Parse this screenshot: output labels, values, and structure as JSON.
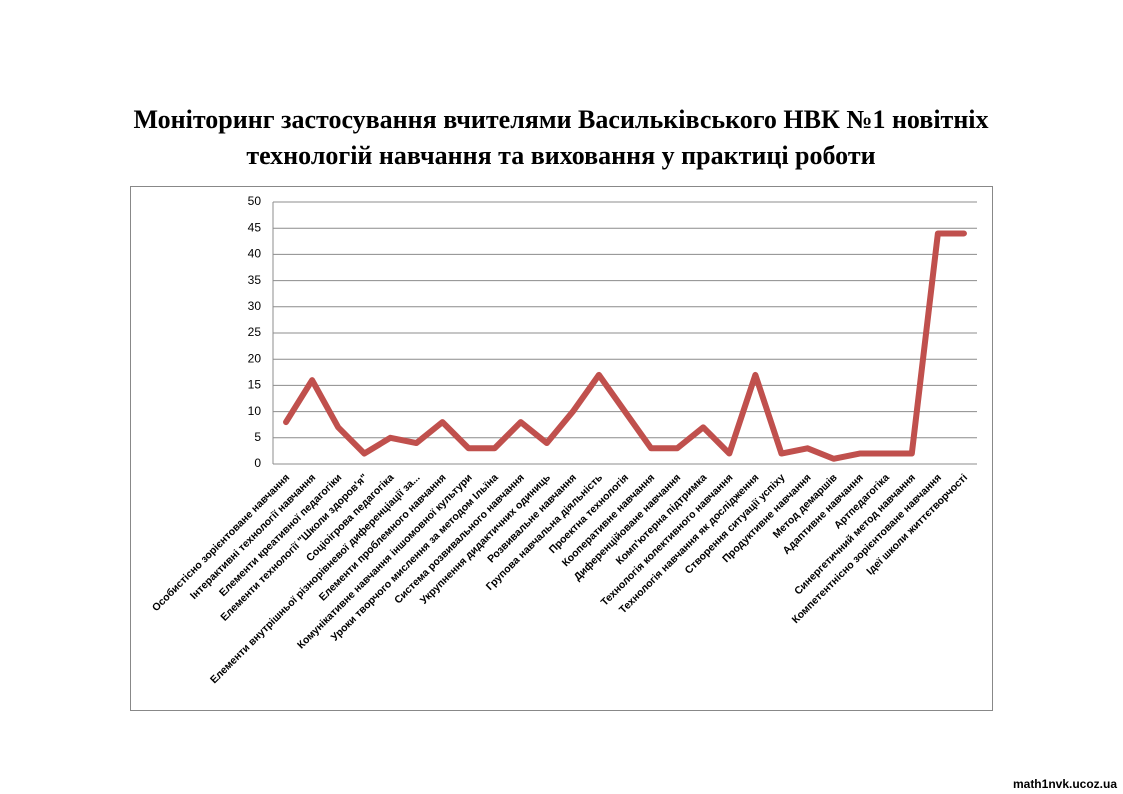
{
  "chart_data": {
    "type": "line",
    "title": [
      "Моніторинг застосування вчителями Васильківського НВК №1 новітніх",
      "технологій навчання та виховання у практиці роботи"
    ],
    "categories": [
      "Особистісно зорієнтоване навчання",
      "Інтерактивні технології навчання",
      "Елементи креативної педагогіки",
      "Елементи технології \"Школи здоров'я\"",
      "Соціоігрова педагогіка",
      "Елементи внутрішньої різнорівневої диференціації  за...",
      "Елементи проблемного навчання",
      "Комунікативне навчання іншомовної культури",
      "Уроки творчого мислення за методом Ільїна",
      "Система розвивального навчання",
      "Укрупнення дидактичних одиниць",
      "Розвивальне навчання",
      "Групова навчальна діяльність",
      "Проектна технологія",
      "Кооперативне навчання",
      "Диференційоване навчання",
      "Комп'ютерна підтримка",
      "Технологія колективного навчання",
      "Технологія навчання як дослідження",
      "Створення ситуації успіху",
      "Продуктивне навчання",
      "Метод демаршів",
      "Адаптивне навчання",
      "Артпедагогіка",
      "Синергетичний метод навчання",
      "Компетентнісно зорієнтоване навчання",
      "Ідеї школи життєтворчості"
    ],
    "values": [
      8,
      16,
      7,
      2,
      5,
      4,
      8,
      3,
      3,
      8,
      4,
      10,
      17,
      10,
      3,
      3,
      7,
      2,
      17,
      2,
      3,
      1,
      2,
      2,
      2,
      44,
      44
    ],
    "color": "#c0504d",
    "ylim": [
      0,
      50
    ],
    "yticks": [
      0,
      5,
      10,
      15,
      20,
      25,
      30,
      35,
      40,
      45,
      50
    ],
    "grid": true
  },
  "watermark": "math1nvk.ucoz.ua"
}
